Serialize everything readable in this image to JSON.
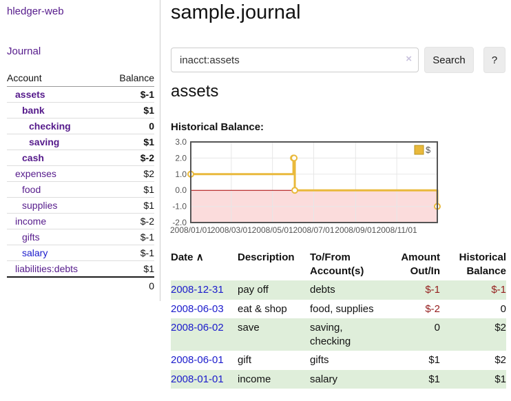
{
  "brand": "hledger-web",
  "nav": {
    "journal": "Journal"
  },
  "sidebar": {
    "col_account": "Account",
    "col_balance": "Balance",
    "accounts": [
      {
        "name": "assets",
        "level": 1,
        "bold": true,
        "balance": "$-1",
        "balance_style": "neg-strong"
      },
      {
        "name": "bank",
        "level": 2,
        "bold": true,
        "balance": "$1",
        "balance_style": "pos-bold"
      },
      {
        "name": "checking",
        "level": 3,
        "bold": true,
        "balance": "0",
        "balance_style": "pos-bold"
      },
      {
        "name": "saving",
        "level": 3,
        "bold": true,
        "balance": "$1",
        "balance_style": "pos-bold"
      },
      {
        "name": "cash",
        "level": 2,
        "bold": true,
        "balance": "$-2",
        "balance_style": "neg-strong"
      },
      {
        "name": "expenses",
        "level": 1,
        "bold": false,
        "balance": "$2",
        "balance_style": "pos"
      },
      {
        "name": "food",
        "level": 2,
        "bold": false,
        "balance": "$1",
        "balance_style": "pos"
      },
      {
        "name": "supplies",
        "level": 2,
        "bold": false,
        "balance": "$1",
        "balance_style": "pos"
      },
      {
        "name": "income",
        "level": 1,
        "bold": false,
        "balance": "$-2",
        "balance_style": "neg-soft"
      },
      {
        "name": "gifts",
        "level": 2,
        "bold": false,
        "balance": "$-1",
        "balance_style": "neg-soft"
      },
      {
        "name": "salary",
        "level": 2,
        "bold": false,
        "balance": "$-1",
        "balance_style": "neg-soft",
        "link_style": "blue"
      },
      {
        "name": "liabilities:debts",
        "level": 1,
        "bold": false,
        "balance": "$1",
        "balance_style": "pos"
      }
    ],
    "total": "0"
  },
  "main": {
    "title": "sample.journal",
    "search": {
      "value": "inacct:assets",
      "clear_label": "×",
      "search_button": "Search",
      "help_button": "?"
    },
    "account_heading": "assets",
    "chart_title": "Historical Balance:"
  },
  "chart_data": {
    "type": "line",
    "mode": "steps",
    "title": "Historical Balance",
    "legend": [
      {
        "label": "$",
        "color": "#e9b93b"
      }
    ],
    "legend_position": "top-right",
    "x_range": [
      "2008-01-01",
      "2008-12-31"
    ],
    "ylim": [
      -2,
      3
    ],
    "y_ticks": [
      "3.0",
      "2.0",
      "1.0",
      "0.0",
      "-1.0",
      "-2.0"
    ],
    "x_ticks": [
      {
        "date": "2008-01-01",
        "label": "2008/01/01"
      },
      {
        "date": "2008-03-01",
        "label": "2008/03/01"
      },
      {
        "date": "2008-05-01",
        "label": "2008/05/01"
      },
      {
        "date": "2008-07-01",
        "label": "2008/07/01"
      },
      {
        "date": "2008-09-01",
        "label": "2008/09/01"
      },
      {
        "date": "2008-11-01",
        "label": "2008/11/01"
      }
    ],
    "series": [
      {
        "name": "$",
        "color": "#e9b93b",
        "points": [
          {
            "date": "2008-01-01",
            "value": 1
          },
          {
            "date": "2008-06-01",
            "value": 2
          },
          {
            "date": "2008-06-02",
            "value": 2
          },
          {
            "date": "2008-06-03",
            "value": 0
          },
          {
            "date": "2008-12-31",
            "value": -1
          }
        ]
      }
    ],
    "negative_region_color": "#fbdcdc",
    "zero_line_color": "#a80000",
    "grid_color": "#e7e7e7",
    "border_color": "#545454",
    "tick_text_color": "#545454"
  },
  "register": {
    "columns": {
      "date": "Date",
      "sort_icon": "∧",
      "description": "Description",
      "accounts_line1": "To/From",
      "accounts_line2": "Account(s)",
      "amount_line1": "Amount",
      "amount_line2": "Out/In",
      "balance_line1": "Historical",
      "balance_line2": "Balance"
    },
    "rows": [
      {
        "date": "2008-12-31",
        "description": "pay off",
        "accounts": "debts",
        "amount": "$-1",
        "amount_negative": true,
        "balance": "$-1",
        "balance_negative": true
      },
      {
        "date": "2008-06-03",
        "description": "eat & shop",
        "accounts": "food, supplies",
        "amount": "$-2",
        "amount_negative": true,
        "balance": "0",
        "balance_negative": false
      },
      {
        "date": "2008-06-02",
        "description": "save",
        "accounts": "saving, checking",
        "amount": "0",
        "amount_negative": false,
        "balance": "$2",
        "balance_negative": false
      },
      {
        "date": "2008-06-01",
        "description": "gift",
        "accounts": "gifts",
        "amount": "$1",
        "amount_negative": false,
        "balance": "$2",
        "balance_negative": false
      },
      {
        "date": "2008-01-01",
        "description": "income",
        "accounts": "salary",
        "amount": "$1",
        "amount_negative": false,
        "balance": "$1",
        "balance_negative": false
      }
    ]
  }
}
